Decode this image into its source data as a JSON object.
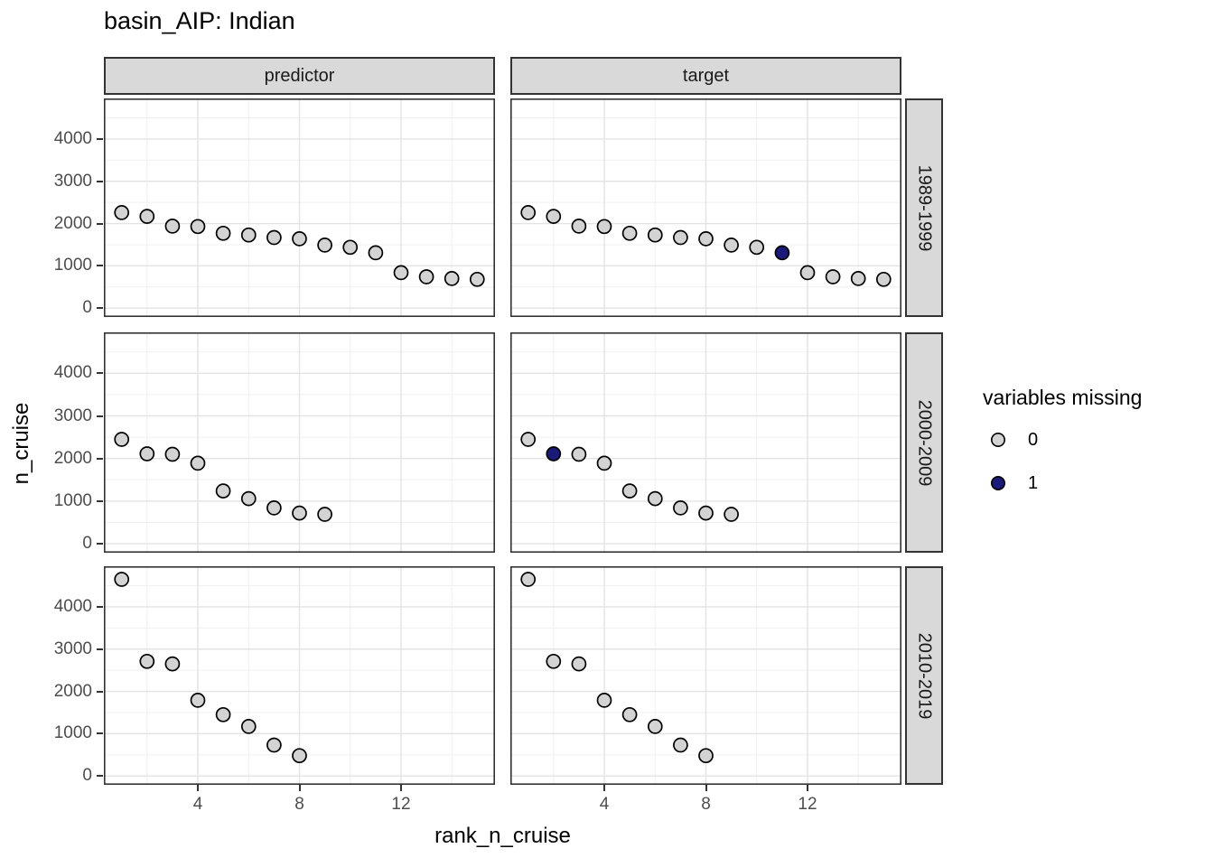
{
  "title": "basin_AIP: Indian",
  "axes": {
    "x_title": "rank_n_cruise",
    "y_title": "n_cruise",
    "x_ticks": [
      4,
      8,
      12
    ],
    "y_ticks": [
      4000,
      3000,
      2000,
      1000,
      0
    ]
  },
  "facets": {
    "cols": [
      "predictor",
      "target"
    ],
    "rows": [
      "1989-1999",
      "2000-2009",
      "2010-2019"
    ]
  },
  "legend": {
    "title": "variables missing",
    "items": [
      {
        "label": "0",
        "color": "#d3d3d3"
      },
      {
        "label": "1",
        "color": "#1a1a78"
      }
    ]
  },
  "chart_data": {
    "type": "scatter",
    "title": "basin_AIP: Indian",
    "xlabel": "rank_n_cruise",
    "ylabel": "n_cruise",
    "legend_title": "variables missing",
    "legend_position": "right",
    "grid": "on",
    "x_range_shown": [
      0.3,
      15.7
    ],
    "y_range_shown": [
      -210,
      4960
    ],
    "x_major_gridlines": [
      4,
      8,
      12
    ],
    "x_minor_gridlines": [
      2,
      6,
      10,
      14
    ],
    "y_major_gridlines": [
      0,
      1000,
      2000,
      3000,
      4000
    ],
    "y_minor_gridlines": [
      500,
      1500,
      2500,
      3500,
      4500
    ],
    "facet_columns": [
      "predictor",
      "target"
    ],
    "facet_rows": [
      "1989-1999",
      "2000-2009",
      "2010-2019"
    ],
    "point_color_by": "variables missing (0 = gray, 1 = navy)",
    "panels": [
      {
        "facet_col": "predictor",
        "facet_row": "1989-1999",
        "x": [
          1,
          2,
          3,
          4,
          5,
          6,
          7,
          8,
          9,
          10,
          11,
          12,
          13,
          14,
          15
        ],
        "y": [
          2260,
          2170,
          1940,
          1930,
          1770,
          1730,
          1670,
          1640,
          1490,
          1440,
          1310,
          840,
          740,
          700,
          680
        ],
        "variables_missing": [
          0,
          0,
          0,
          0,
          0,
          0,
          0,
          0,
          0,
          0,
          0,
          0,
          0,
          0,
          0
        ]
      },
      {
        "facet_col": "target",
        "facet_row": "1989-1999",
        "x": [
          1,
          2,
          3,
          4,
          5,
          6,
          7,
          8,
          9,
          10,
          11,
          12,
          13,
          14,
          15
        ],
        "y": [
          2260,
          2170,
          1940,
          1930,
          1770,
          1730,
          1670,
          1640,
          1490,
          1440,
          1310,
          840,
          740,
          700,
          680
        ],
        "variables_missing": [
          0,
          0,
          0,
          0,
          0,
          0,
          0,
          0,
          0,
          0,
          1,
          0,
          0,
          0,
          0
        ]
      },
      {
        "facet_col": "predictor",
        "facet_row": "2000-2009",
        "x": [
          1,
          2,
          3,
          4,
          5,
          6,
          7,
          8,
          9
        ],
        "y": [
          2450,
          2110,
          2100,
          1890,
          1240,
          1060,
          840,
          720,
          690
        ],
        "variables_missing": [
          0,
          0,
          0,
          0,
          0,
          0,
          0,
          0,
          0
        ]
      },
      {
        "facet_col": "target",
        "facet_row": "2000-2009",
        "x": [
          1,
          2,
          3,
          4,
          5,
          6,
          7,
          8,
          9
        ],
        "y": [
          2450,
          2110,
          2100,
          1890,
          1240,
          1060,
          840,
          720,
          690
        ],
        "variables_missing": [
          0,
          1,
          0,
          0,
          0,
          0,
          0,
          0,
          0
        ]
      },
      {
        "facet_col": "predictor",
        "facet_row": "2010-2019",
        "x": [
          1,
          2,
          3,
          4,
          5,
          6,
          7,
          8
        ],
        "y": [
          4650,
          2710,
          2650,
          1790,
          1450,
          1170,
          730,
          480
        ],
        "variables_missing": [
          0,
          0,
          0,
          0,
          0,
          0,
          0,
          0
        ]
      },
      {
        "facet_col": "target",
        "facet_row": "2010-2019",
        "x": [
          1,
          2,
          3,
          4,
          5,
          6,
          7,
          8
        ],
        "y": [
          4650,
          2710,
          2650,
          1790,
          1450,
          1170,
          730,
          480
        ],
        "variables_missing": [
          0,
          0,
          0,
          0,
          0,
          0,
          0,
          0
        ]
      }
    ]
  }
}
